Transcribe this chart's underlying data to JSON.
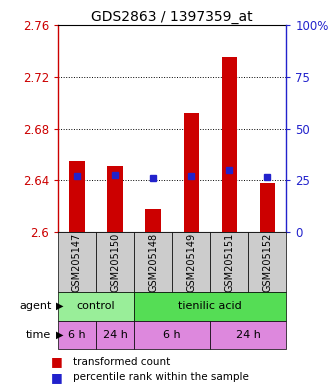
{
  "title": "GDS2863 / 1397359_at",
  "samples": [
    "GSM205147",
    "GSM205150",
    "GSM205148",
    "GSM205149",
    "GSM205151",
    "GSM205152"
  ],
  "bar_tops": [
    2.655,
    2.651,
    2.618,
    2.692,
    2.735,
    2.638
  ],
  "bar_bottom": 2.6,
  "percentile_values": [
    0.274,
    0.278,
    0.263,
    0.272,
    0.302,
    0.266
  ],
  "ylim": [
    2.6,
    2.76
  ],
  "yticks_left": [
    2.6,
    2.64,
    2.68,
    2.72,
    2.76
  ],
  "yticks_right": [
    0,
    25,
    50,
    75,
    100
  ],
  "bar_color": "#cc0000",
  "percentile_color": "#2222cc",
  "agent_control_color": "#99ee99",
  "agent_acid_color": "#55dd55",
  "time_6h_color": "#dd88dd",
  "time_24h_color": "#ee55ee",
  "sample_box_color": "#cccccc",
  "agent_labels": [
    [
      "control",
      0,
      2
    ],
    [
      "tienilic acid",
      2,
      6
    ]
  ],
  "time_labels": [
    [
      "6 h",
      0,
      1
    ],
    [
      "24 h",
      1,
      2
    ],
    [
      "6 h",
      2,
      4
    ],
    [
      "24 h",
      4,
      6
    ]
  ],
  "legend_bar_label": "transformed count",
  "legend_pct_label": "percentile rank within the sample",
  "bar_width": 0.4
}
